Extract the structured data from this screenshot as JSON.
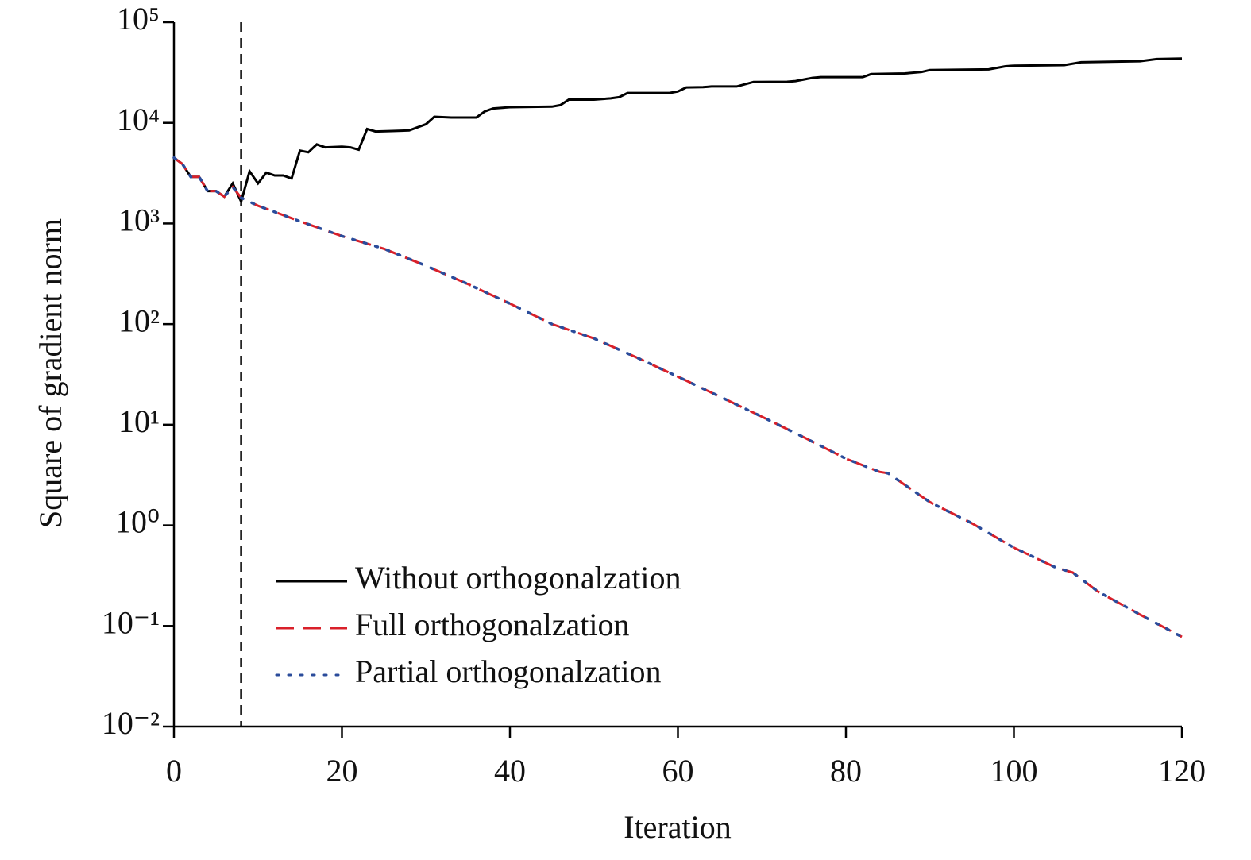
{
  "chart_data": {
    "type": "line",
    "xlabel": "Iteration",
    "ylabel": "Square of gradient norm",
    "xlim": [
      0,
      120
    ],
    "xticks": [
      0,
      20,
      40,
      60,
      80,
      100,
      120
    ],
    "ylim": [
      0.01,
      100000
    ],
    "ylog": true,
    "yticks": [
      {
        "value": 0.01,
        "label": "10⁻²"
      },
      {
        "value": 0.1,
        "label": "10⁻¹"
      },
      {
        "value": 1,
        "label": "10⁰"
      },
      {
        "value": 10,
        "label": "10¹"
      },
      {
        "value": 100,
        "label": "10²"
      },
      {
        "value": 1000,
        "label": "10³"
      },
      {
        "value": 10000,
        "label": "10⁴"
      },
      {
        "value": 100000,
        "label": "10⁵"
      }
    ],
    "vline_x": 8,
    "legend": "lower-left",
    "series": [
      {
        "name": "Without orthogonalzation",
        "color": "#000000",
        "style": "solid",
        "x": [
          0,
          1,
          2,
          3,
          4,
          5,
          6,
          7,
          8,
          9,
          10,
          11,
          12,
          13,
          14,
          15,
          16,
          17,
          18,
          20,
          21,
          22,
          23,
          24,
          26,
          28,
          30,
          31,
          33,
          36,
          37,
          38,
          40,
          45,
          46,
          47,
          50,
          52,
          53,
          54,
          59,
          60,
          61,
          63,
          64,
          67,
          69,
          73,
          74,
          76,
          77,
          82,
          83,
          87,
          89,
          90,
          97,
          99,
          100,
          106,
          108,
          115,
          117,
          120
        ],
        "values": [
          4500,
          3900,
          2900,
          2900,
          2100,
          2100,
          1850,
          2500,
          1650,
          3300,
          2500,
          3200,
          3000,
          3000,
          2800,
          5300,
          5100,
          6100,
          5700,
          5800,
          5700,
          5400,
          8700,
          8200,
          8300,
          8400,
          9700,
          11500,
          11300,
          11300,
          13000,
          13900,
          14300,
          14500,
          15000,
          17000,
          17000,
          17500,
          18000,
          19800,
          19800,
          20500,
          22500,
          22600,
          23000,
          23000,
          25500,
          25600,
          26000,
          28000,
          28500,
          28500,
          30500,
          31000,
          32000,
          33500,
          34000,
          36500,
          37000,
          37500,
          40000,
          41000,
          43000,
          43500
        ]
      },
      {
        "name": "Full orthogonalzation",
        "color": "#d9202a",
        "style": "dashed",
        "x": [
          0,
          1,
          2,
          3,
          4,
          5,
          6,
          7,
          8,
          10,
          15,
          20,
          25,
          30,
          35,
          40,
          45,
          50,
          55,
          60,
          65,
          70,
          75,
          80,
          84,
          85,
          90,
          95,
          100,
          105,
          107,
          110,
          115,
          120
        ],
        "values": [
          4500,
          3900,
          2900,
          2900,
          2100,
          2100,
          1850,
          2300,
          1800,
          1500,
          1050,
          750,
          560,
          380,
          250,
          160,
          100,
          72,
          47,
          30,
          19,
          12,
          7.5,
          4.6,
          3.4,
          3.3,
          1.7,
          1.05,
          0.6,
          0.38,
          0.34,
          0.22,
          0.13,
          0.078
        ]
      },
      {
        "name": "Partial orthogonalzation",
        "color": "#2b4c9b",
        "style": "dotted",
        "x": [
          0,
          1,
          2,
          3,
          4,
          5,
          6,
          7,
          8,
          10,
          15,
          20,
          25,
          30,
          35,
          40,
          45,
          50,
          55,
          60,
          65,
          70,
          75,
          80,
          84,
          85,
          90,
          95,
          100,
          105,
          107,
          110,
          115,
          120
        ],
        "values": [
          4500,
          3900,
          2900,
          2900,
          2100,
          2100,
          1850,
          2300,
          1800,
          1500,
          1050,
          750,
          560,
          380,
          250,
          160,
          100,
          72,
          47,
          30,
          19,
          12,
          7.5,
          4.6,
          3.4,
          3.3,
          1.7,
          1.05,
          0.6,
          0.38,
          0.34,
          0.22,
          0.13,
          0.078
        ]
      }
    ]
  }
}
